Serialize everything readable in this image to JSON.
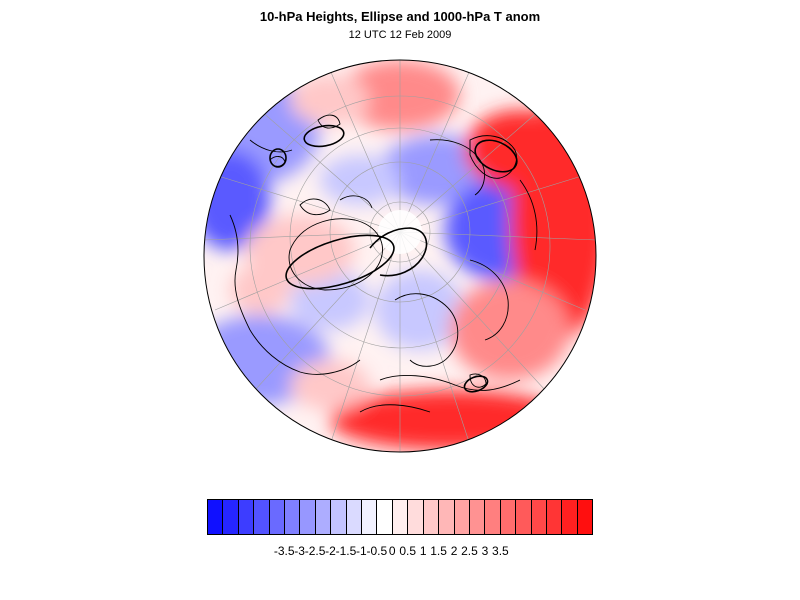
{
  "figure": {
    "title": "10-hPa Heights, Ellipse and 1000-hPa T anom",
    "subtitle": "12 UTC 12 Feb 2009"
  },
  "colorbar": {
    "colors": [
      "#1010ff",
      "#2626ff",
      "#3d3dff",
      "#5353ff",
      "#6a6aff",
      "#8080ff",
      "#9797ff",
      "#adadff",
      "#c4c4ff",
      "#dadaff",
      "#f1f1ff",
      "#ffffff",
      "#ffeeee",
      "#ffdcdc",
      "#ffc9c9",
      "#ffb7b7",
      "#ffa4a4",
      "#ff9292",
      "#ff7f7f",
      "#ff6d6d",
      "#ff5a5a",
      "#ff4848",
      "#ff3535",
      "#ff2020",
      "#ff0f0f"
    ],
    "labels": [
      "-3.5",
      "-3",
      "-2.5",
      "-2",
      "-1.5",
      "-1",
      "-0.5",
      "0",
      "0.5",
      "1",
      "1.5",
      "2",
      "2.5",
      "3",
      "3.5"
    ]
  },
  "map": {
    "projection": "orthographic-north-polar",
    "colors": {
      "cold_strong": "#5a5aff",
      "cold": "#9a9aff",
      "cold_light": "#c8c8ff",
      "neutral": "#fff2f2",
      "warm_light": "#ffc8c8",
      "warm": "#ff8a8a",
      "warm_strong": "#ff2a2a",
      "land_outline": "#000000",
      "grid": "#a0a0a0"
    }
  }
}
